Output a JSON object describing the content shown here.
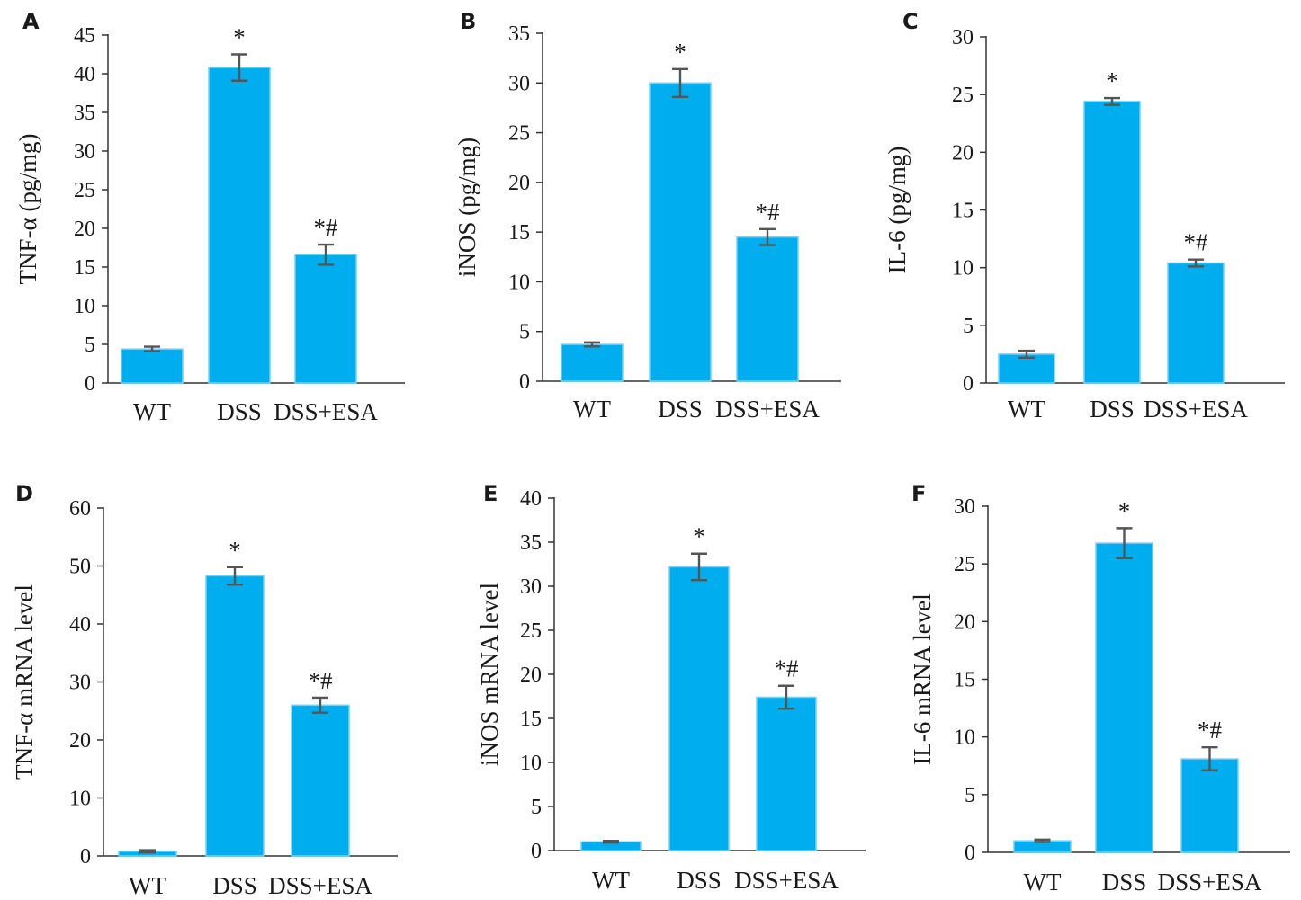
{
  "colors": {
    "bar": "#00aeef",
    "bar_edge": "#6fd3f7",
    "axis": "#333333",
    "error": "#555555"
  },
  "chart_data": [
    {
      "panel": "A",
      "type": "bar",
      "ylabel": "TNF-α (pg/mg)",
      "categories": [
        "WT",
        "DSS",
        "DSS+ESA"
      ],
      "values": [
        4.4,
        40.8,
        16.6
      ],
      "errors": [
        0.3,
        1.7,
        1.3
      ],
      "significance": [
        "",
        "*",
        "*#"
      ],
      "ylim": [
        0,
        45
      ],
      "yticks": [
        0,
        5,
        10,
        15,
        20,
        25,
        30,
        35,
        40,
        45
      ]
    },
    {
      "panel": "B",
      "type": "bar",
      "ylabel": "iNOS (pg/mg)",
      "categories": [
        "WT",
        "DSS",
        "DSS+ESA"
      ],
      "values": [
        3.7,
        30.0,
        14.5
      ],
      "errors": [
        0.2,
        1.4,
        0.8
      ],
      "significance": [
        "",
        "*",
        "*#"
      ],
      "ylim": [
        0,
        35
      ],
      "yticks": [
        0,
        5,
        10,
        15,
        20,
        25,
        30,
        35
      ]
    },
    {
      "panel": "C",
      "type": "bar",
      "ylabel": "IL-6 (pg/mg)",
      "categories": [
        "WT",
        "DSS",
        "DSS+ESA"
      ],
      "values": [
        2.5,
        24.4,
        10.4
      ],
      "errors": [
        0.3,
        0.3,
        0.3
      ],
      "significance": [
        "",
        "*",
        "*#"
      ],
      "ylim": [
        0,
        30
      ],
      "yticks": [
        0,
        5,
        10,
        15,
        20,
        25,
        30
      ]
    },
    {
      "panel": "D",
      "type": "bar",
      "ylabel": "TNF-α mRNA level",
      "categories": [
        "WT",
        "DSS",
        "DSS+ESA"
      ],
      "values": [
        0.8,
        48.3,
        26.0
      ],
      "errors": [
        0.2,
        1.5,
        1.3
      ],
      "significance": [
        "",
        "*",
        "*#"
      ],
      "ylim": [
        0,
        60
      ],
      "yticks": [
        0,
        10,
        20,
        30,
        40,
        50,
        60
      ]
    },
    {
      "panel": "E",
      "type": "bar",
      "ylabel": "iNOS mRNA level",
      "categories": [
        "WT",
        "DSS",
        "DSS+ESA"
      ],
      "values": [
        1.0,
        32.2,
        17.4
      ],
      "errors": [
        0.1,
        1.5,
        1.3
      ],
      "significance": [
        "",
        "*",
        "*#"
      ],
      "ylim": [
        0,
        40
      ],
      "yticks": [
        0,
        5,
        10,
        15,
        20,
        25,
        30,
        35,
        40
      ]
    },
    {
      "panel": "F",
      "type": "bar",
      "ylabel": "IL-6 mRNA level",
      "categories": [
        "WT",
        "DSS",
        "DSS+ESA"
      ],
      "values": [
        1.0,
        26.8,
        8.1
      ],
      "errors": [
        0.1,
        1.3,
        1.0
      ],
      "significance": [
        "",
        "*",
        "*#"
      ],
      "ylim": [
        0,
        30
      ],
      "yticks": [
        0,
        5,
        10,
        15,
        20,
        25,
        30
      ]
    }
  ]
}
